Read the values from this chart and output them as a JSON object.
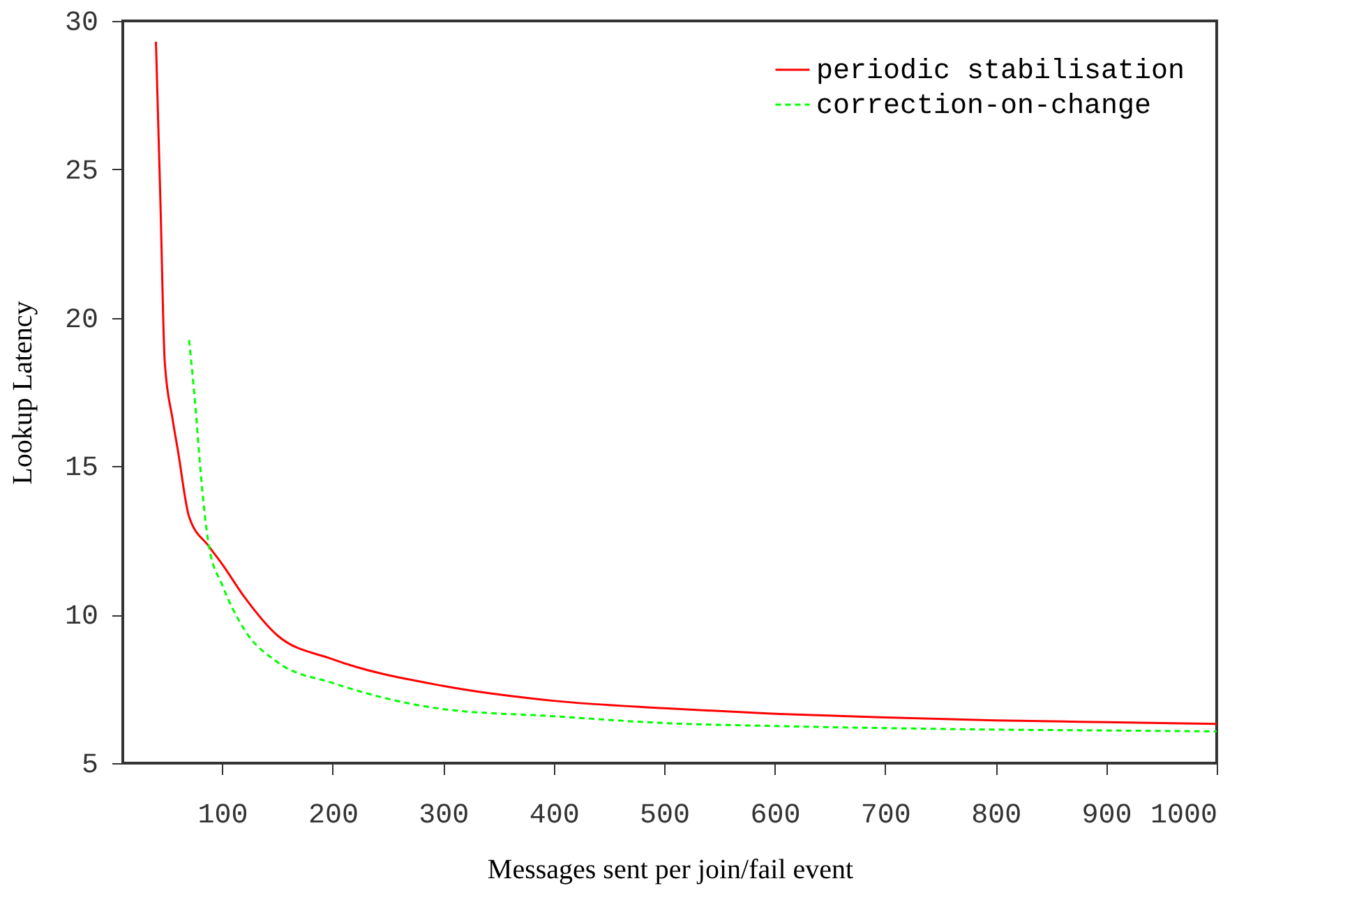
{
  "chart_data": {
    "type": "line",
    "xlabel": "Messages sent per join/fail event",
    "ylabel": "Lookup Latency",
    "xlim": [
      10,
      1000
    ],
    "ylim": [
      5,
      30
    ],
    "xticks": [
      100,
      200,
      300,
      400,
      500,
      600,
      700,
      800,
      900,
      1000
    ],
    "yticks": [
      5,
      10,
      15,
      20,
      25,
      30
    ],
    "legend": "top right",
    "grid": false,
    "marker": "none",
    "series": [
      {
        "name": "periodic stabilisation",
        "color": "#ff0000",
        "line_style": "solid",
        "x": [
          40,
          44,
          48,
          55,
          60,
          70,
          88,
          100,
          120,
          150,
          200,
          300,
          400,
          500,
          600,
          700,
          800,
          900,
          1000
        ],
        "values": [
          29.3,
          24,
          18.5,
          16.6,
          15.5,
          13.3,
          12.3,
          11.7,
          10.6,
          9.3,
          8.5,
          7.6,
          7.1,
          6.85,
          6.66,
          6.54,
          6.44,
          6.38,
          6.32
        ]
      },
      {
        "name": "correction-on-change",
        "color": "#00ff00",
        "line_style": "dashed",
        "x": [
          70,
          76,
          80,
          88,
          100,
          120,
          150,
          200,
          300,
          400,
          500,
          600,
          700,
          800,
          900,
          1000
        ],
        "values": [
          19.25,
          16.9,
          15,
          12.3,
          11,
          9.5,
          8.4,
          7.7,
          6.82,
          6.58,
          6.35,
          6.25,
          6.18,
          6.13,
          6.1,
          6.07
        ]
      }
    ]
  }
}
